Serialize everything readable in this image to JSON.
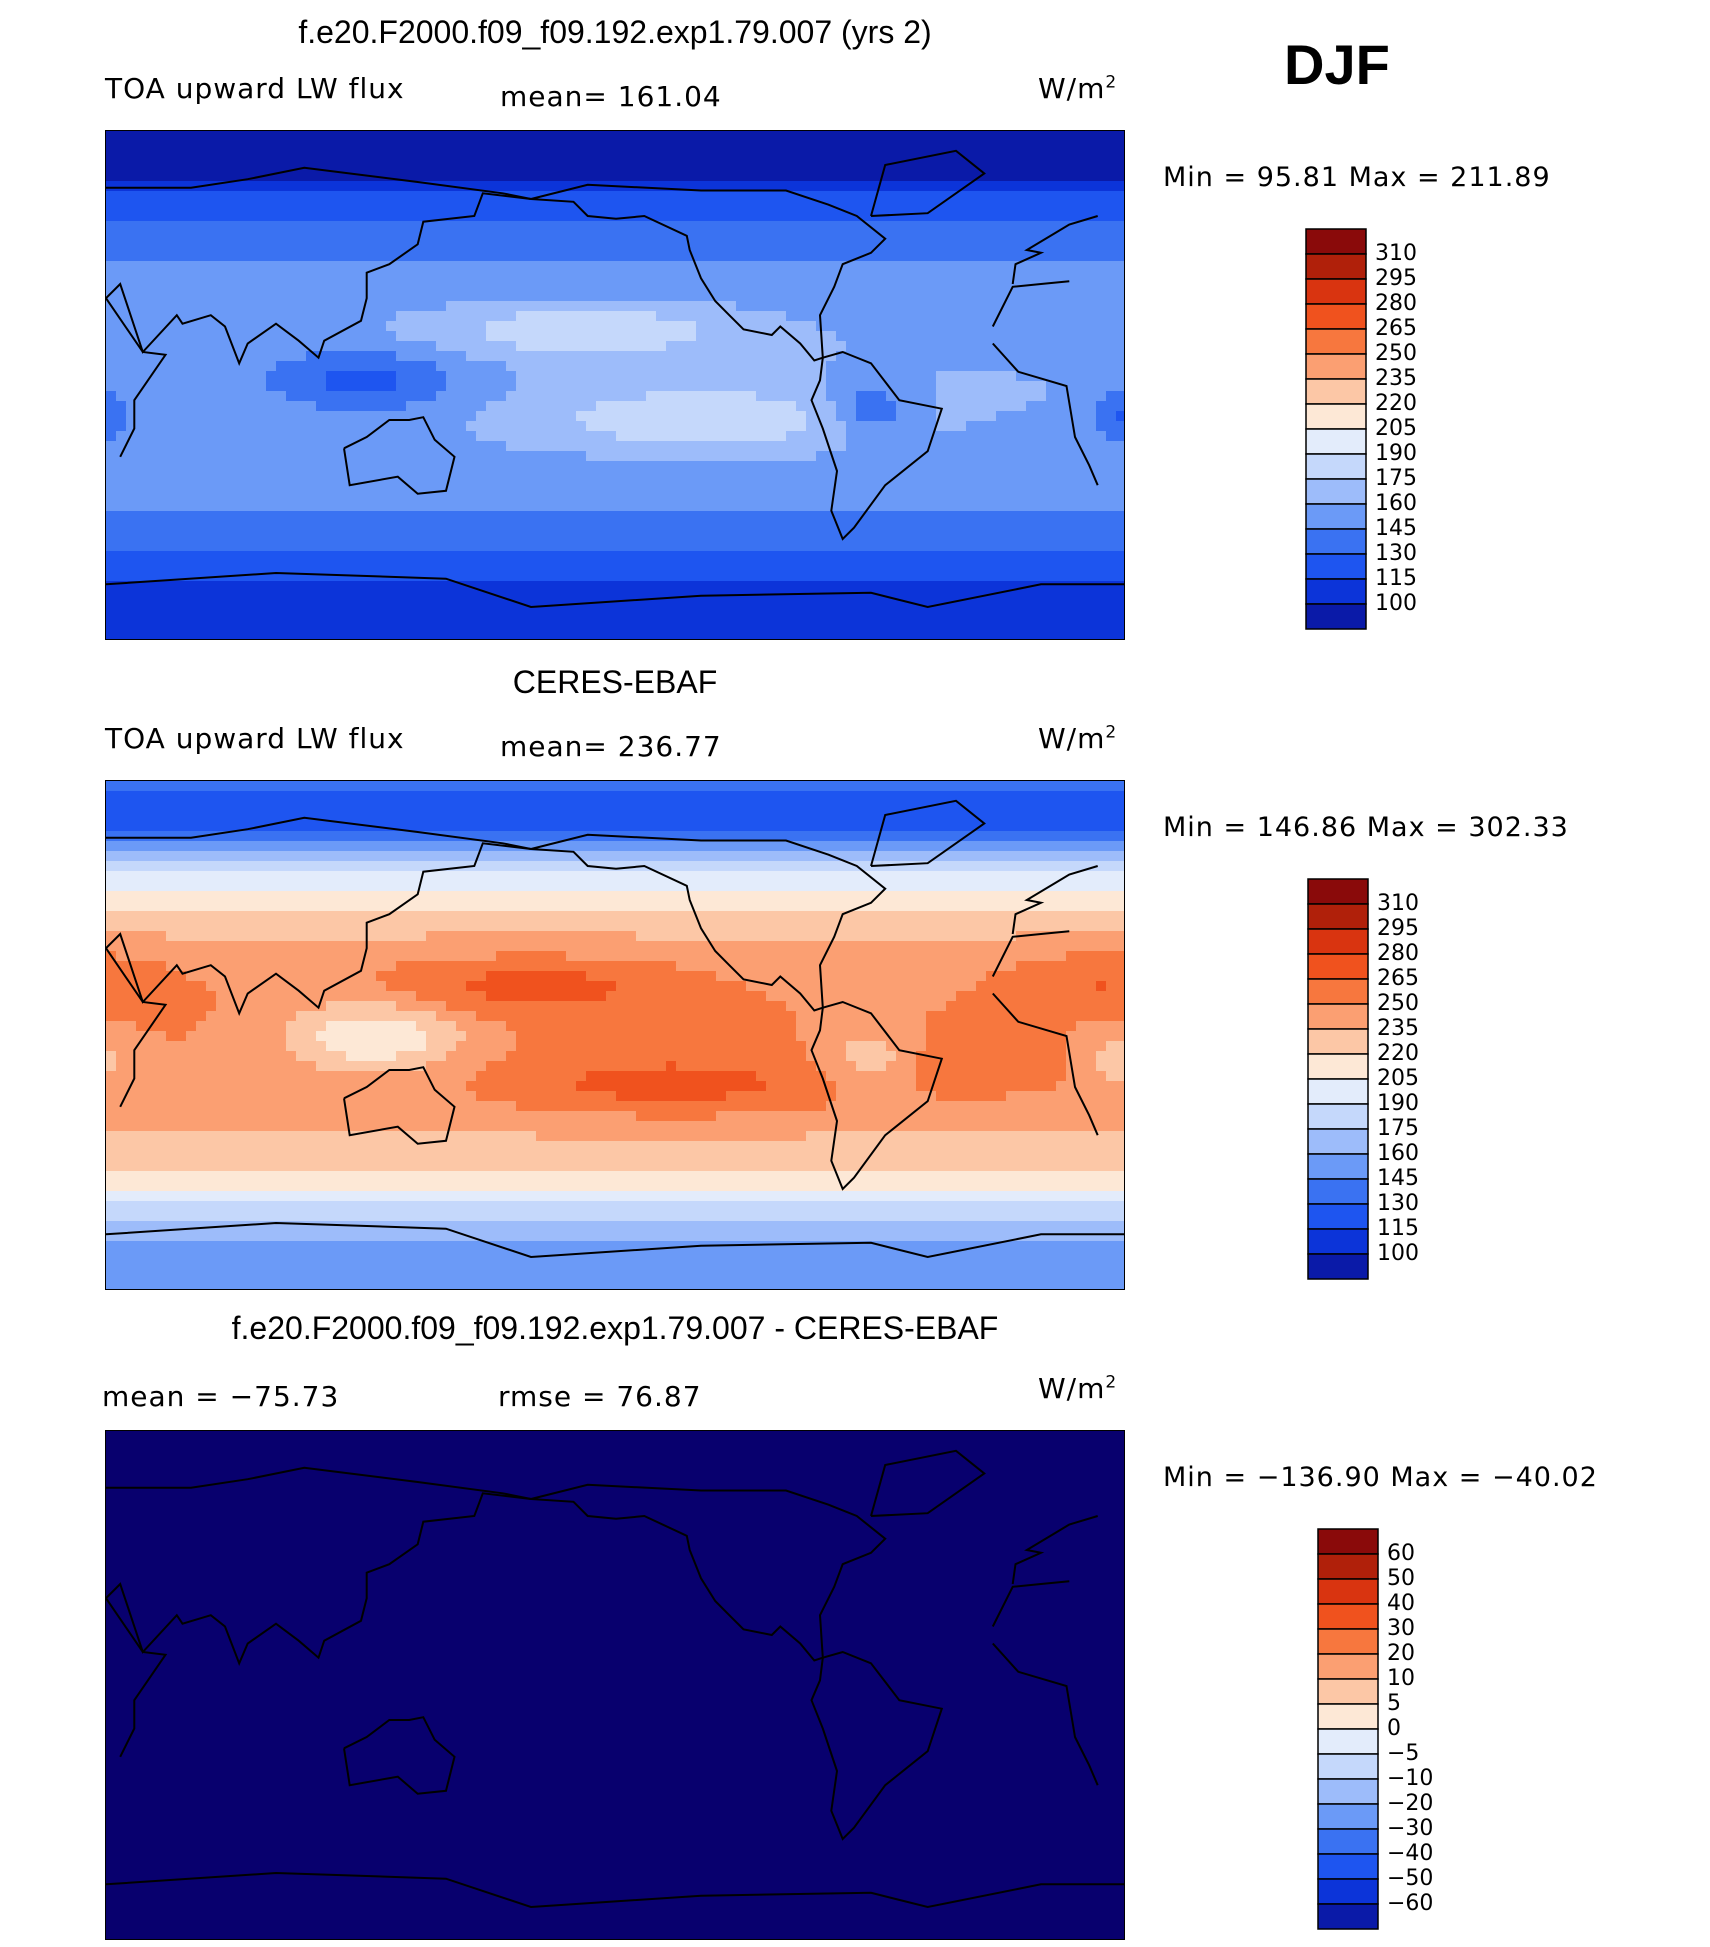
{
  "season": "DJF",
  "panels": [
    {
      "id": "model",
      "title": "f.e20.F2000.f09_f09.192.exp1.79.007 (yrs 2)",
      "left_label": "TOA upward LW flux",
      "center_label": "mean= 161.04",
      "units_base": "W/m",
      "units_sup": "2",
      "minmax": "Min =   95.81  Max  =  211.89",
      "palette": "model",
      "colorbar_ticks": [
        "310",
        "295",
        "280",
        "265",
        "250",
        "235",
        "220",
        "205",
        "190",
        "175",
        "160",
        "145",
        "130",
        "115",
        "100"
      ]
    },
    {
      "id": "obs",
      "title": "CERES-EBAF",
      "left_label": "TOA upward LW flux",
      "center_label": "mean= 236.77",
      "units_base": "W/m",
      "units_sup": "2",
      "minmax": "Min  =  146.86  Max  =  302.33",
      "palette": "obs",
      "colorbar_ticks": [
        "310",
        "295",
        "280",
        "265",
        "250",
        "235",
        "220",
        "205",
        "190",
        "175",
        "160",
        "145",
        "130",
        "115",
        "100"
      ]
    },
    {
      "id": "diff",
      "title": "f.e20.F2000.f09_f09.192.exp1.79.007 - CERES-EBAF",
      "left_label": "mean  =  −75.73",
      "center_label": "rmse  =    76.87",
      "units_base": "W/m",
      "units_sup": "2",
      "minmax": "Min  =  −136.90  Max  =  −40.02",
      "palette": "diff",
      "colorbar_ticks": [
        "60",
        "50",
        "40",
        "30",
        "20",
        "10",
        "5",
        "0",
        "−5",
        "−10",
        "−20",
        "−30",
        "−40",
        "−50",
        "−60"
      ]
    }
  ],
  "colors": {
    "scale": [
      "#08006e",
      "#0a1aa8",
      "#0c34d9",
      "#1e55f0",
      "#3a72f2",
      "#6b9af7",
      "#9dbcfa",
      "#c5d8fb",
      "#e3ecfb",
      "#fde8d6",
      "#fcc7a6",
      "#fb9f72",
      "#f7773e",
      "#f0521e",
      "#d93410",
      "#b0200a",
      "#8a0a0a"
    ],
    "coast": "#000000"
  },
  "chart_data": [
    {
      "type": "heatmap",
      "title": "f.e20.F2000.f09_f09.192.exp1.79.007 (yrs 2)",
      "variable": "TOA upward LW flux",
      "units": "W/m2",
      "mean": 161.04,
      "min": 95.81,
      "max": 211.89,
      "levels": [
        100,
        115,
        130,
        145,
        160,
        175,
        190,
        205,
        220,
        235,
        250,
        265,
        280,
        295,
        310
      ]
    },
    {
      "type": "heatmap",
      "title": "CERES-EBAF",
      "variable": "TOA upward LW flux",
      "units": "W/m2",
      "mean": 236.77,
      "min": 146.86,
      "max": 302.33,
      "levels": [
        100,
        115,
        130,
        145,
        160,
        175,
        190,
        205,
        220,
        235,
        250,
        265,
        280,
        295,
        310
      ]
    },
    {
      "type": "heatmap",
      "title": "f.e20.F2000.f09_f09.192.exp1.79.007 - CERES-EBAF",
      "units": "W/m2",
      "mean": -75.73,
      "rmse": 76.87,
      "min": -136.9,
      "max": -40.02,
      "levels": [
        -60,
        -50,
        -40,
        -30,
        -20,
        -10,
        -5,
        0,
        5,
        10,
        20,
        30,
        40,
        50,
        60
      ]
    }
  ]
}
